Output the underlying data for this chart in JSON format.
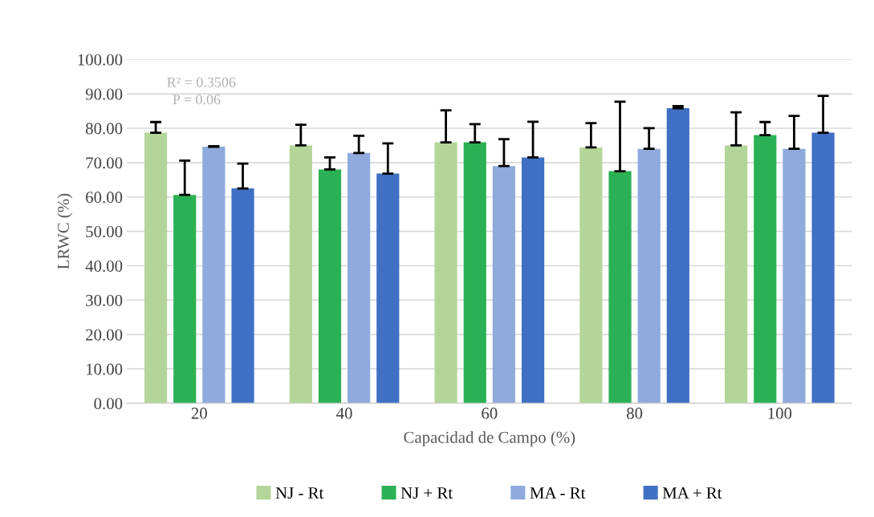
{
  "chart_data": {
    "type": "bar",
    "xlabel": "Capacidad de Campo (%)",
    "ylabel": "LRWC (%)",
    "categories": [
      "20",
      "40",
      "60",
      "80",
      "100"
    ],
    "series": [
      {
        "name": "NJ - Rt",
        "color": "#b3d59a",
        "values": [
          78.7,
          75.0,
          75.9,
          74.4,
          75.0
        ],
        "errors": [
          [
            78.7,
            81.8
          ],
          [
            75.0,
            81.0
          ],
          [
            75.9,
            85.2
          ],
          [
            74.4,
            81.5
          ],
          [
            75.0,
            84.6
          ]
        ]
      },
      {
        "name": "NJ + Rt",
        "color": "#2bb155",
        "values": [
          60.6,
          68.0,
          75.9,
          67.5,
          78.0
        ],
        "errors": [
          [
            60.6,
            70.6
          ],
          [
            68.0,
            71.5
          ],
          [
            75.9,
            81.2
          ],
          [
            67.5,
            87.7
          ],
          [
            78.0,
            81.8
          ]
        ]
      },
      {
        "name": "MA - Rt",
        "color": "#8faadc",
        "values": [
          74.6,
          72.8,
          69.0,
          74.0,
          74.0
        ],
        "errors": [
          [
            74.6,
            74.8
          ],
          [
            72.8,
            77.8
          ],
          [
            69.0,
            76.8
          ],
          [
            74.0,
            80.0
          ],
          [
            74.0,
            83.6
          ]
        ]
      },
      {
        "name": "MA + Rt",
        "color": "#4070c4",
        "values": [
          62.5,
          66.8,
          71.5,
          85.8,
          78.7
        ],
        "errors": [
          [
            62.5,
            69.7
          ],
          [
            66.8,
            75.6
          ],
          [
            71.5,
            81.9
          ],
          [
            85.8,
            86.4
          ],
          [
            78.7,
            89.4
          ]
        ]
      }
    ],
    "ylim": [
      0,
      100
    ],
    "yticks": [
      {
        "value": 0,
        "label": "0.00"
      },
      {
        "value": 10,
        "label": "10.00"
      },
      {
        "value": 20,
        "label": "20.00"
      },
      {
        "value": 30,
        "label": "30.00"
      },
      {
        "value": 40,
        "label": "40.00"
      },
      {
        "value": 50,
        "label": "50.00"
      },
      {
        "value": 60,
        "label": "60.00"
      },
      {
        "value": 70,
        "label": "70.00"
      },
      {
        "value": 80,
        "label": "80.00"
      },
      {
        "value": 90,
        "label": "90.00"
      },
      {
        "value": 100,
        "label": "100.00"
      }
    ],
    "annotations": [
      "R² = 0.3506",
      "P = 0.06"
    ],
    "grid": "y",
    "legend": "bottom"
  }
}
